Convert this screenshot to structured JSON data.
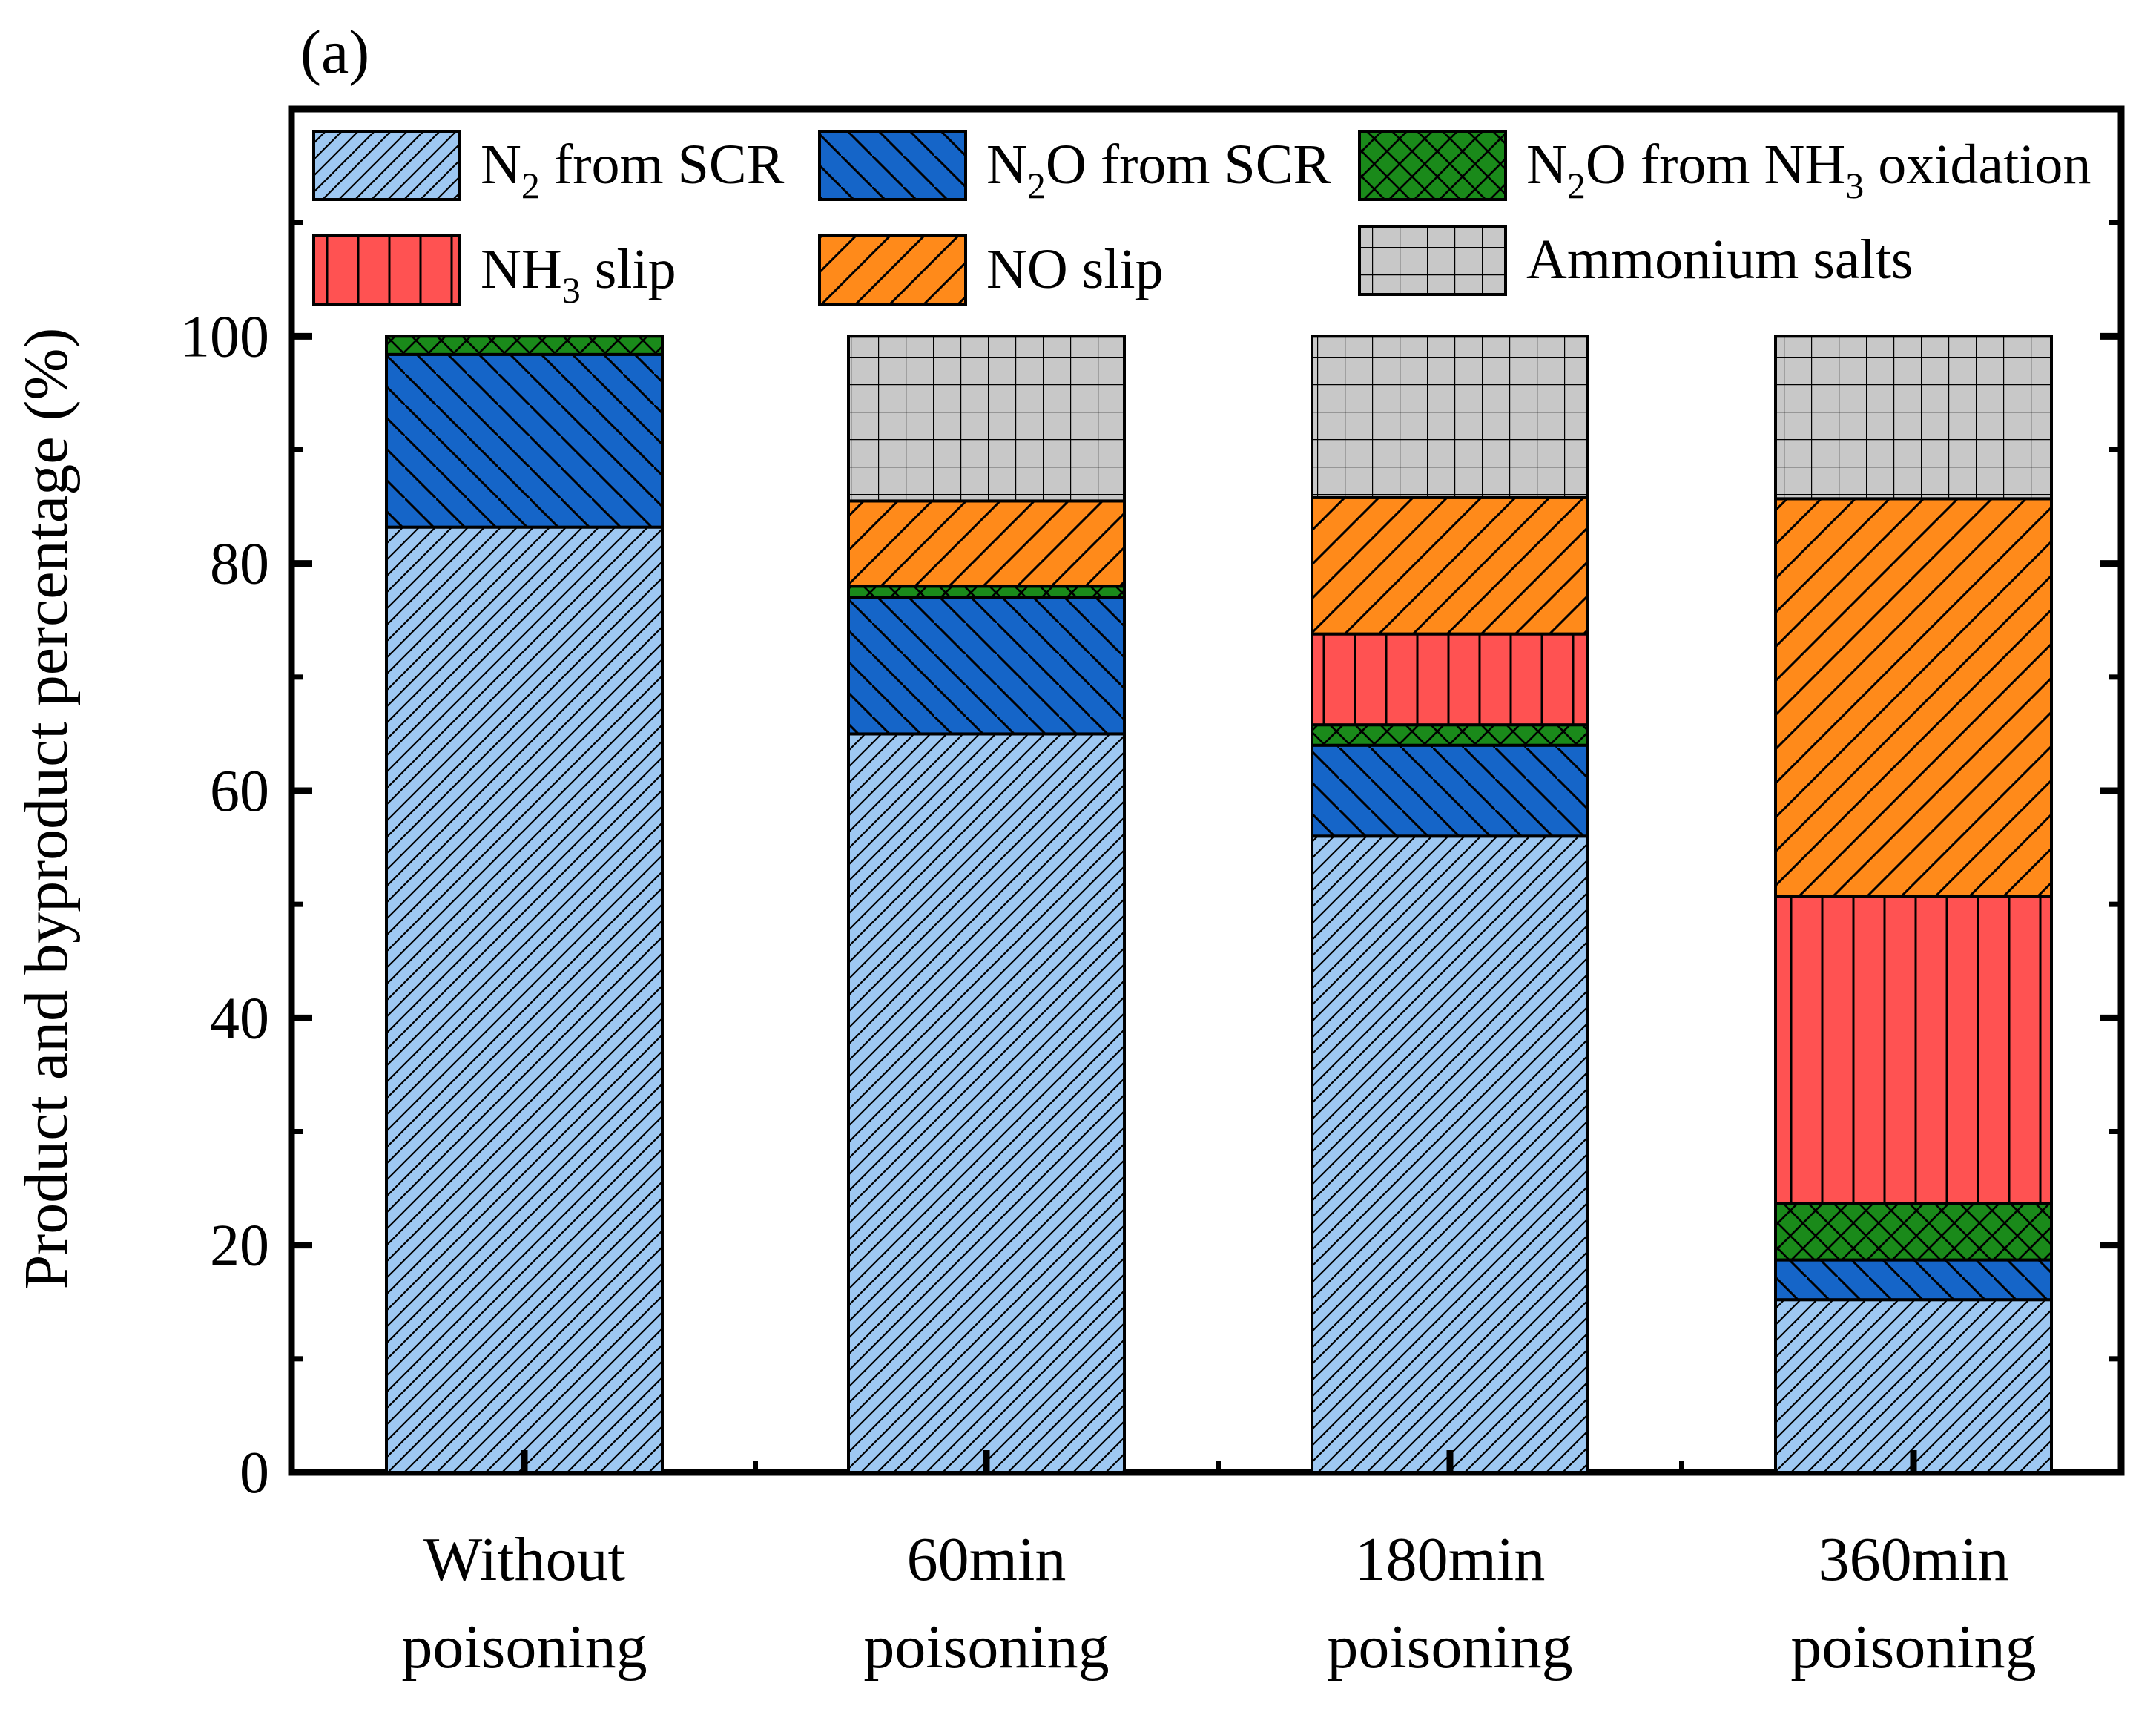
{
  "chart_data": {
    "type": "bar",
    "stacked": true,
    "panel_label": "(a)",
    "title": "",
    "xlabel": "",
    "ylabel": "Product and byproduct percentage (%)",
    "ylim": [
      0,
      120
    ],
    "yticks": [
      0,
      20,
      40,
      60,
      80,
      100
    ],
    "grid": false,
    "legend_position": "top",
    "categories": [
      [
        "Without",
        "poisoning"
      ],
      [
        "60min",
        "poisoning"
      ],
      [
        "180min",
        "poisoning"
      ],
      [
        "360min",
        "poisoning"
      ]
    ],
    "series": [
      {
        "key": "n2scr",
        "name": "N2 from SCR",
        "label": {
          "pre": "N",
          "sub": "2",
          "post": " from SCR"
        },
        "color": "#9ec8f2",
        "pattern": "diag-fine",
        "values": [
          83.2,
          65.0,
          56.0,
          15.2
        ]
      },
      {
        "key": "n2oscr",
        "name": "N2O from SCR",
        "label": {
          "pre": "N",
          "sub": "2",
          "post": "O from SCR"
        },
        "color": "#1565c8",
        "pattern": "diag-back",
        "values": [
          15.2,
          12.0,
          8.0,
          3.5
        ]
      },
      {
        "key": "n2onh3",
        "name": "N2O from NH3 oxidation",
        "label": {
          "pre": "N",
          "sub": "2",
          "post": "O from NH",
          "sub2": "3",
          "post2": " oxidation"
        },
        "color": "#1a8a1a",
        "pattern": "crosshatch",
        "values": [
          1.6,
          1.0,
          1.8,
          5.0
        ]
      },
      {
        "key": "nh3",
        "name": "NH3 slip",
        "label": {
          "pre": "NH",
          "sub": "3",
          "post": " slip"
        },
        "color": "#ff5252",
        "pattern": "vertical",
        "values": [
          0,
          0,
          8.0,
          27.0
        ]
      },
      {
        "key": "no",
        "name": "NO slip",
        "label": {
          "pre": "NO slip",
          "sub": "",
          "post": ""
        },
        "color": "#ff8a1a",
        "pattern": "diag-coarse",
        "values": [
          0,
          7.5,
          12.0,
          35.0
        ]
      },
      {
        "key": "salts",
        "name": "Ammonium salts",
        "label": {
          "pre": "Ammonium salts",
          "sub": "",
          "post": ""
        },
        "color": "#c8c8c8",
        "pattern": "grid",
        "values": [
          0,
          14.5,
          14.2,
          14.3
        ]
      }
    ]
  }
}
